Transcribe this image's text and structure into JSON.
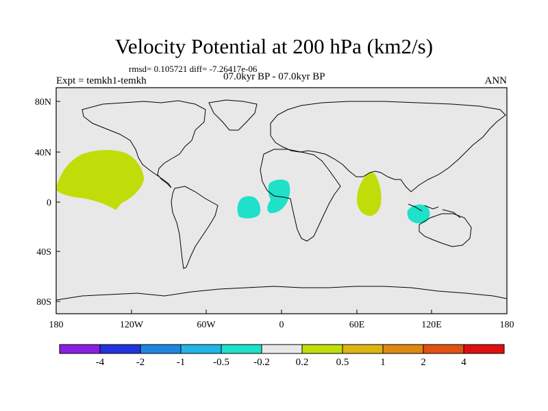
{
  "title": "Velocity Potential at 200 hPa (km2/s)",
  "stats_line": "rmsd= 0.105721 diff= -7.26417e-06",
  "experiment_label": "Expt = temkh1-temkh",
  "period_label": "07.0kyr BP - 07.0kyr BP",
  "season_label": "ANN",
  "y_axis_labels": [
    "80N",
    "40N",
    "0",
    "40S",
    "80S"
  ],
  "x_axis_labels": [
    "180",
    "120W",
    "60W",
    "0",
    "60E",
    "120E",
    "180"
  ],
  "colorbar": {
    "colors": [
      "#8a1fe0",
      "#2233dd",
      "#1f86e0",
      "#22b5e6",
      "#1fe0c8",
      "#e8e8e8",
      "#c0dd0a",
      "#ddb512",
      "#e08814",
      "#e0520f",
      "#e00f0f"
    ],
    "labels": [
      "-4",
      "-2",
      "-1",
      "-0.5",
      "-0.2",
      "0.2",
      "0.5",
      "1",
      "2",
      "4"
    ]
  },
  "colors": {
    "map_background": "#e8e8e8",
    "positive_anomaly": "#c0dd0a",
    "negative_anomaly": "#1fe0c8",
    "coastline": "#000000"
  }
}
